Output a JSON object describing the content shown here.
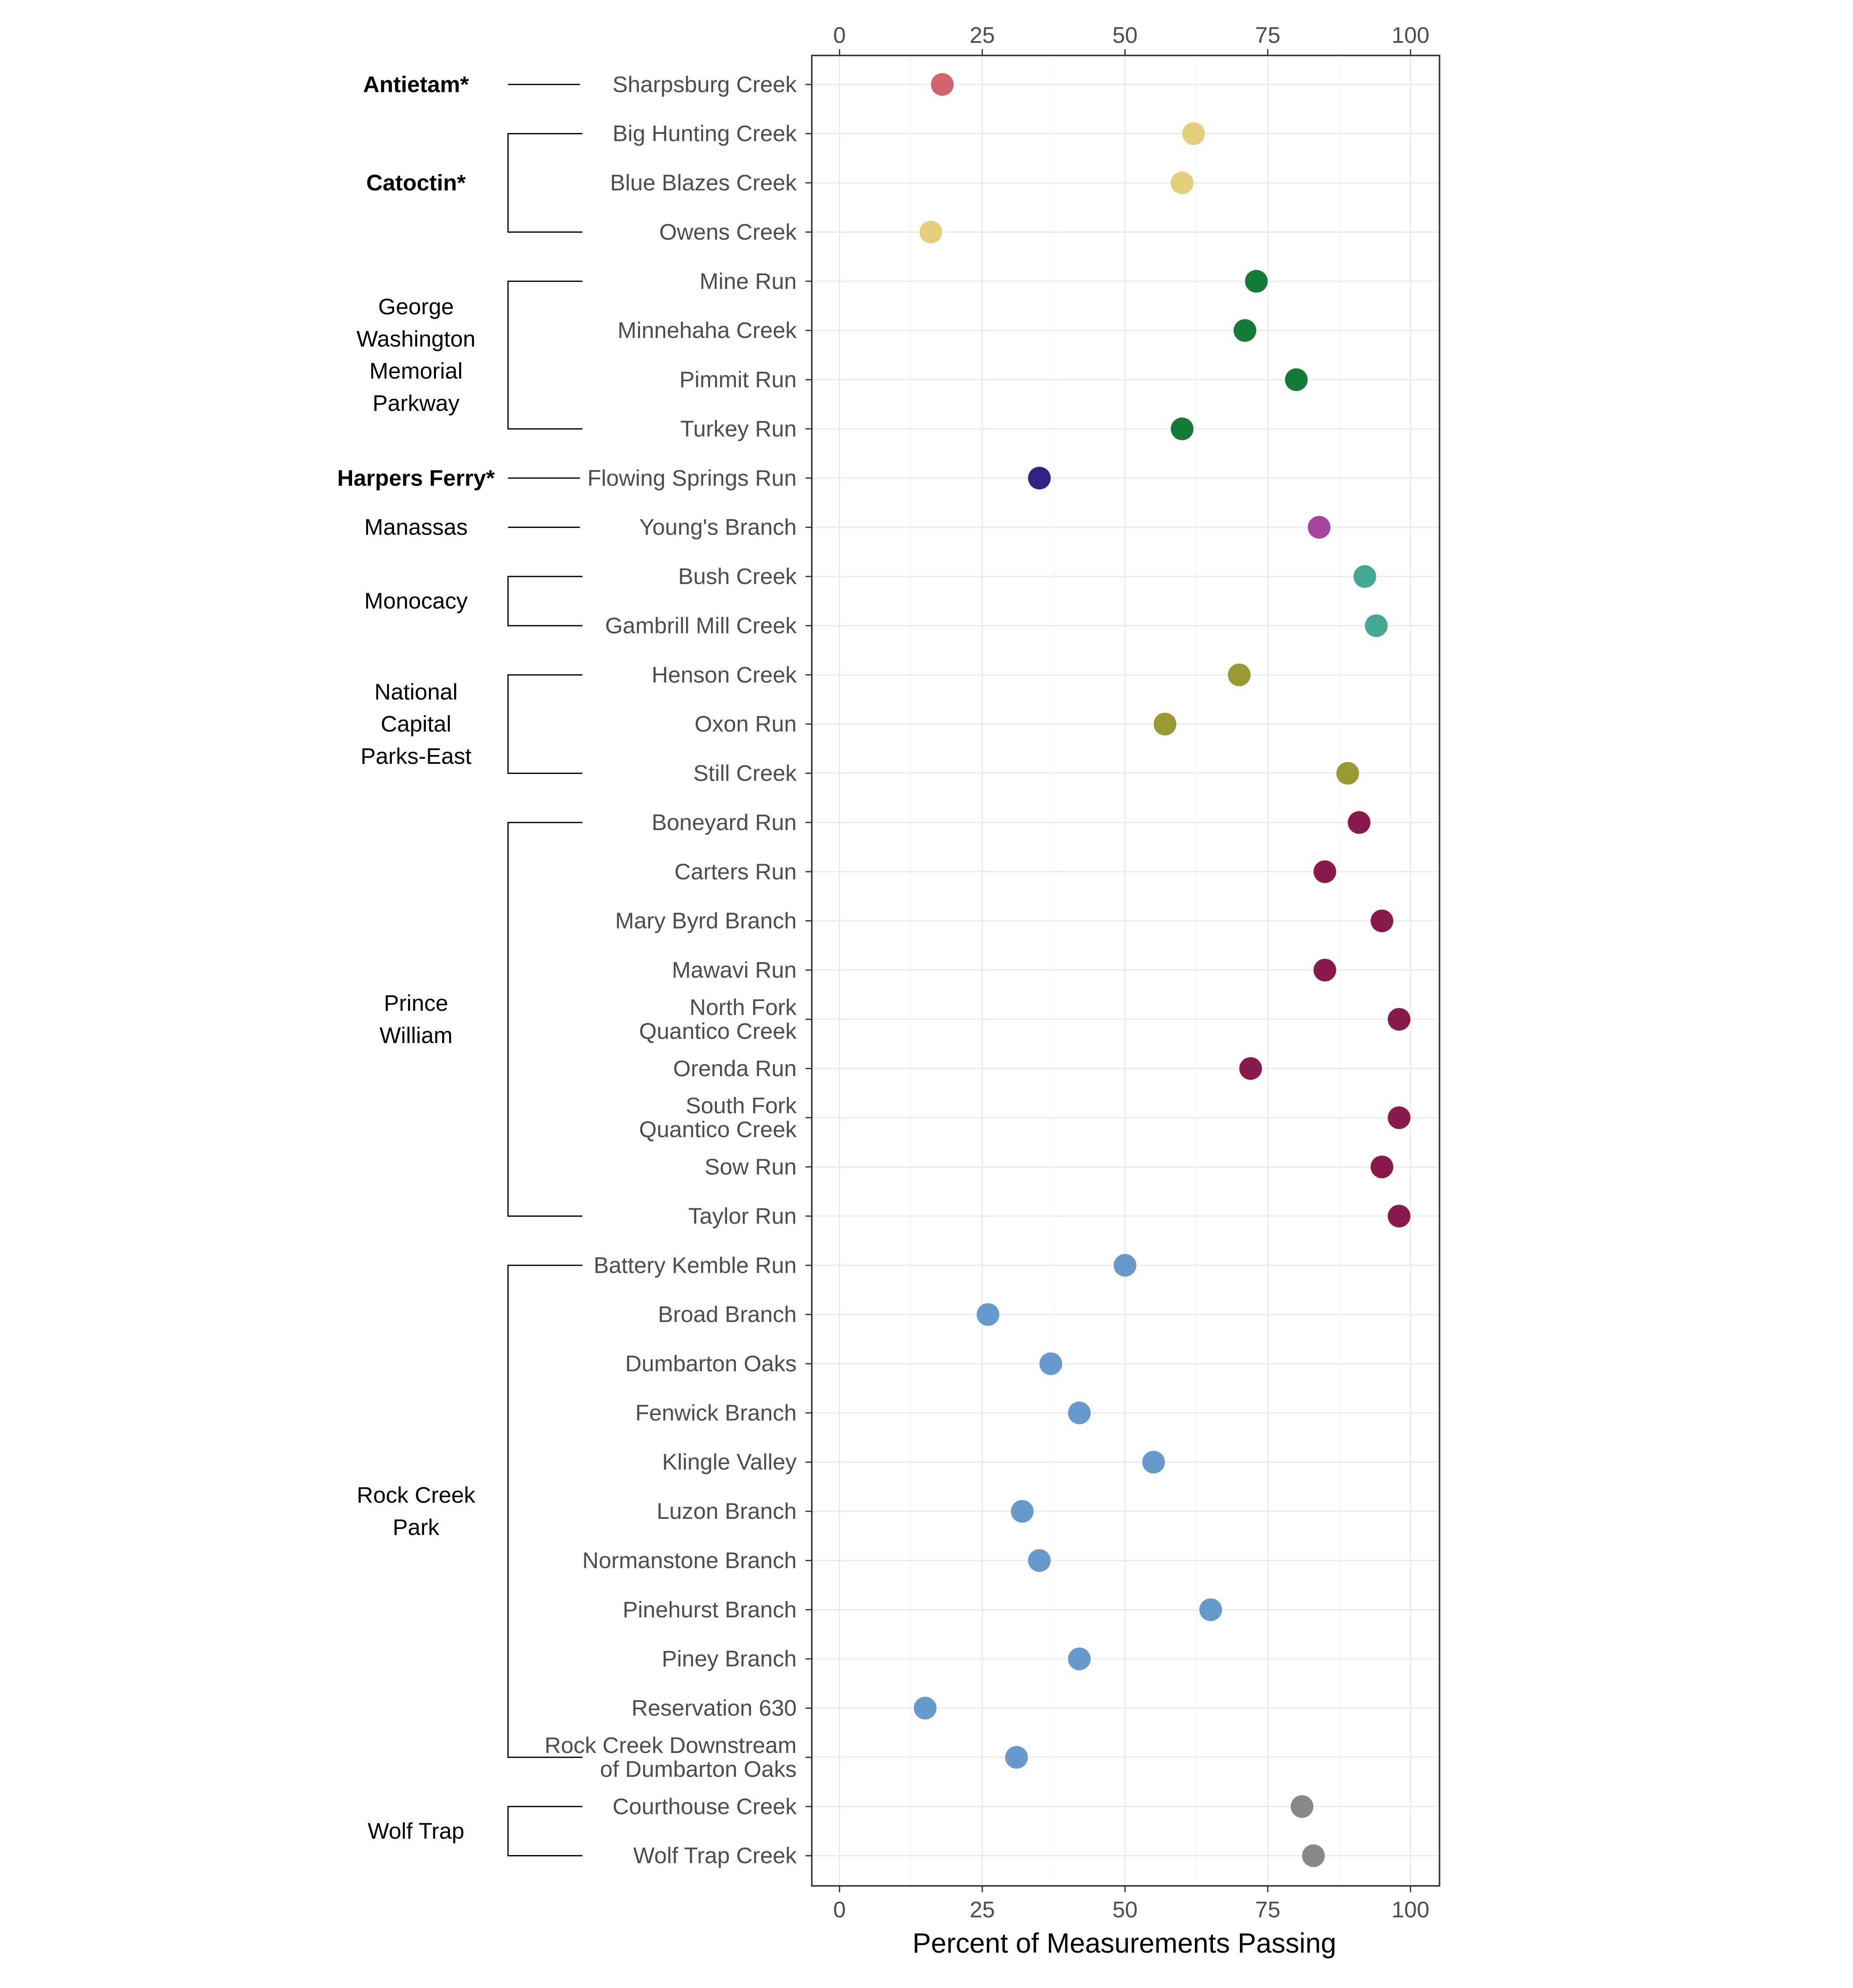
{
  "chart_data": {
    "type": "scatter",
    "xlabel": "Percent of Measurements Passing",
    "xlim": [
      0,
      100
    ],
    "xticks": [
      0,
      25,
      50,
      75,
      100
    ],
    "grid": true,
    "legend": "none",
    "groups": [
      {
        "name": "Antietam*",
        "lines": [
          "Antietam*"
        ],
        "bold": true,
        "color": "#d0636e",
        "sites": [
          {
            "label": [
              "Sharpsburg Creek"
            ],
            "value": 18
          }
        ]
      },
      {
        "name": "Catoctin*",
        "lines": [
          "Catoctin*"
        ],
        "bold": true,
        "color": "#e3cf7b",
        "sites": [
          {
            "label": [
              "Big Hunting Creek"
            ],
            "value": 62
          },
          {
            "label": [
              "Blue Blazes Creek"
            ],
            "value": 60
          },
          {
            "label": [
              "Owens Creek"
            ],
            "value": 16
          }
        ]
      },
      {
        "name": "George Washington Memorial Parkway",
        "lines": [
          "George",
          "Washington",
          "Memorial",
          "Parkway"
        ],
        "bold": false,
        "color": "#137b35",
        "sites": [
          {
            "label": [
              "Mine Run"
            ],
            "value": 73
          },
          {
            "label": [
              "Minnehaha Creek"
            ],
            "value": 71
          },
          {
            "label": [
              "Pimmit Run"
            ],
            "value": 80
          },
          {
            "label": [
              "Turkey Run"
            ],
            "value": 60
          }
        ]
      },
      {
        "name": "Harpers Ferry*",
        "lines": [
          "Harpers Ferry*"
        ],
        "bold": true,
        "color": "#2e2483",
        "sites": [
          {
            "label": [
              "Flowing Springs Run"
            ],
            "value": 35
          }
        ]
      },
      {
        "name": "Manassas",
        "lines": [
          "Manassas"
        ],
        "bold": false,
        "color": "#a8449e",
        "sites": [
          {
            "label": [
              "Young's Branch"
            ],
            "value": 84
          }
        ]
      },
      {
        "name": "Monocacy",
        "lines": [
          "Monocacy"
        ],
        "bold": false,
        "color": "#45a894",
        "sites": [
          {
            "label": [
              "Bush Creek"
            ],
            "value": 92
          },
          {
            "label": [
              "Gambrill Mill Creek"
            ],
            "value": 94
          }
        ]
      },
      {
        "name": "National Capital Parks-East",
        "lines": [
          "National",
          "Capital",
          "Parks-East"
        ],
        "bold": false,
        "color": "#999933",
        "sites": [
          {
            "label": [
              "Henson Creek"
            ],
            "value": 70
          },
          {
            "label": [
              "Oxon Run"
            ],
            "value": 57
          },
          {
            "label": [
              "Still Creek"
            ],
            "value": 89
          }
        ]
      },
      {
        "name": "Prince William",
        "lines": [
          "Prince",
          "William"
        ],
        "bold": false,
        "color": "#8a1a4d",
        "sites": [
          {
            "label": [
              "Boneyard Run"
            ],
            "value": 91
          },
          {
            "label": [
              "Carters Run"
            ],
            "value": 85
          },
          {
            "label": [
              "Mary Byrd Branch"
            ],
            "value": 95
          },
          {
            "label": [
              "Mawavi Run"
            ],
            "value": 85
          },
          {
            "label": [
              "North Fork",
              "Quantico Creek"
            ],
            "value": 98
          },
          {
            "label": [
              "Orenda Run"
            ],
            "value": 72
          },
          {
            "label": [
              "South Fork",
              "Quantico Creek"
            ],
            "value": 98
          },
          {
            "label": [
              "Sow Run"
            ],
            "value": 95
          },
          {
            "label": [
              "Taylor Run"
            ],
            "value": 98
          }
        ]
      },
      {
        "name": "Rock Creek Park",
        "lines": [
          "Rock Creek",
          "Park"
        ],
        "bold": false,
        "color": "#6699cc",
        "sites": [
          {
            "label": [
              "Battery Kemble Run"
            ],
            "value": 50
          },
          {
            "label": [
              "Broad Branch"
            ],
            "value": 26
          },
          {
            "label": [
              "Dumbarton Oaks"
            ],
            "value": 37
          },
          {
            "label": [
              "Fenwick Branch"
            ],
            "value": 42
          },
          {
            "label": [
              "Klingle Valley"
            ],
            "value": 55
          },
          {
            "label": [
              "Luzon Branch"
            ],
            "value": 32
          },
          {
            "label": [
              "Normanstone Branch"
            ],
            "value": 35
          },
          {
            "label": [
              "Pinehurst Branch"
            ],
            "value": 65
          },
          {
            "label": [
              "Piney Branch"
            ],
            "value": 42
          },
          {
            "label": [
              "Reservation 630"
            ],
            "value": 15
          },
          {
            "label": [
              "Rock Creek Downstream",
              "of Dumbarton Oaks"
            ],
            "value": 31
          }
        ]
      },
      {
        "name": "Wolf Trap",
        "lines": [
          "Wolf Trap"
        ],
        "bold": false,
        "color": "#888888",
        "sites": [
          {
            "label": [
              "Courthouse Creek"
            ],
            "value": 81
          },
          {
            "label": [
              "Wolf Trap Creek"
            ],
            "value": 83
          }
        ]
      }
    ]
  }
}
